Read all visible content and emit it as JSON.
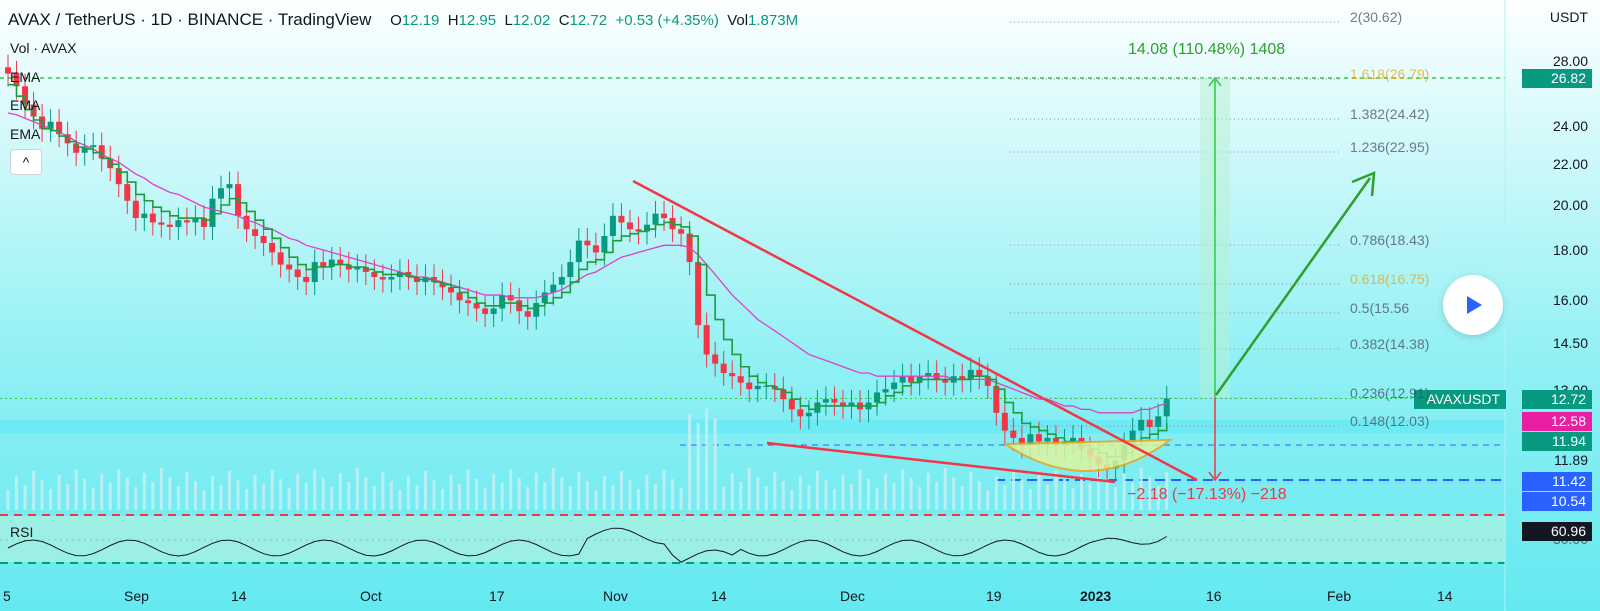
{
  "header": {
    "symbol": "AVAX / TetherUS · 1D · BINANCE · TradingView",
    "o_label": "O",
    "o_value": "12.19",
    "h_label": "H",
    "h_value": "12.95",
    "l_label": "L",
    "l_value": "12.02",
    "c_label": "C",
    "c_value": "12.72",
    "change": "+0.53 (+4.35%)",
    "vol_label": "Vol",
    "vol_value": "1.873M"
  },
  "legend": {
    "volume": "Vol · AVAX",
    "ema1": "EMA",
    "ema2": "EMA",
    "ema3": "EMA",
    "collapse": "^"
  },
  "rsi_label": "RSI",
  "currency": "USDT",
  "price_axis": [
    "28.00",
    "24.00",
    "22.00",
    "20.00",
    "18.00",
    "16.00",
    "14.50",
    "13.00",
    "11.89"
  ],
  "price_tags": [
    {
      "text": "26.82",
      "color": "#089981"
    },
    {
      "text": "12.72",
      "color": "#089981"
    },
    {
      "text": "12.58",
      "color": "#e91ea3"
    },
    {
      "text": "11.94",
      "color": "#089981"
    },
    {
      "text": "11.42",
      "color": "#2962ff"
    },
    {
      "text": "10.54",
      "color": "#2962ff"
    },
    {
      "text": "60.96",
      "color": "#131722"
    }
  ],
  "symbol_tag": "AVAXUSDT",
  "rsi_axis": "50.00",
  "fib_labels": [
    "2(30.62)",
    "1.618(26.79)",
    "1.382(24.42)",
    "1.236(22.95)",
    "0.786(18.43)",
    "0.618(16.75)",
    "0.5(15.56",
    "0.382(14.38)",
    "0.236(12.91)",
    "0.148(12.03)"
  ],
  "measure_up": "14.08 (110.48%) 1408",
  "measure_down": "−2.18 (−17.13%) −218",
  "time_axis": [
    "5",
    "Sep",
    "14",
    "Oct",
    "17",
    "Nov",
    "14",
    "Dec",
    "19",
    "2023",
    "16",
    "Feb",
    "14"
  ],
  "colors": {
    "up": "#089981",
    "down": "#f23645",
    "ema_fast": "#1e9c3a",
    "ema_slow": "#e040c8",
    "trend": "#f23645",
    "target": "#2e9e2e"
  },
  "chart_data": {
    "type": "candlestick",
    "title": "AVAX / TetherUS · 1D · BINANCE",
    "ylabel": "USDT",
    "ylim": [
      10.2,
      32
    ],
    "scale": "log",
    "x_ticks": [
      "5",
      "Sep",
      "14",
      "Oct",
      "17",
      "Nov",
      "14",
      "Dec",
      "19",
      "2023",
      "16",
      "Feb",
      "14"
    ],
    "close": [
      27.2,
      26.4,
      25.3,
      24.6,
      23.9,
      24.3,
      23.6,
      23.1,
      22.6,
      22.9,
      23.0,
      22.3,
      21.8,
      21.0,
      20.2,
      19.4,
      19.6,
      19.2,
      19.1,
      19.0,
      19.3,
      19.2,
      19.4,
      19.0,
      20.3,
      20.8,
      21.0,
      19.5,
      18.9,
      18.6,
      18.3,
      17.9,
      17.4,
      17.2,
      16.9,
      16.7,
      17.5,
      17.3,
      17.6,
      17.4,
      17.2,
      17.3,
      17.1,
      16.9,
      16.8,
      16.9,
      17.1,
      16.9,
      16.7,
      16.9,
      16.7,
      16.5,
      16.3,
      16.0,
      15.9,
      15.7,
      15.5,
      15.7,
      16.2,
      16.0,
      15.6,
      15.4,
      15.9,
      16.3,
      16.6,
      16.9,
      17.5,
      18.4,
      18.2,
      17.9,
      18.6,
      19.5,
      19.2,
      18.9,
      18.8,
      19.1,
      19.6,
      19.4,
      18.9,
      18.7,
      17.5,
      15.1,
      14.1,
      13.8,
      13.5,
      13.4,
      13.2,
      13.0,
      13.1,
      13.1,
      13.0,
      12.7,
      12.4,
      12.2,
      12.3,
      12.6,
      12.7,
      12.6,
      12.5,
      12.6,
      12.4,
      12.6,
      12.9,
      13.0,
      13.2,
      13.4,
      13.2,
      13.4,
      13.5,
      13.3,
      13.2,
      13.4,
      13.3,
      13.6,
      13.4,
      13.1,
      12.3,
      11.8,
      11.6,
      11.4,
      11.7,
      11.5,
      11.6,
      11.4,
      11.5,
      11.6,
      11.3,
      11.1,
      10.9,
      10.8,
      11.0,
      11.4,
      11.8,
      12.1,
      11.9,
      12.2,
      12.72
    ],
    "series": [
      {
        "name": "EMA fast",
        "values": [
          26.5,
          25.8,
          25.0,
          24.4,
          23.9,
          23.8,
          23.5,
          23.2,
          22.9,
          22.8,
          22.6,
          22.3,
          22.0,
          21.6,
          21.1,
          20.5,
          20.2,
          19.9,
          19.7,
          19.5,
          19.4,
          19.4,
          19.4,
          19.3,
          19.6,
          20.0,
          20.3,
          20.1,
          19.7,
          19.3,
          18.9,
          18.5,
          18.1,
          17.7,
          17.4,
          17.2,
          17.3,
          17.3,
          17.4,
          17.4,
          17.3,
          17.3,
          17.2,
          17.1,
          17.0,
          17.0,
          17.0,
          16.9,
          16.8,
          16.8,
          16.7,
          16.6,
          16.5,
          16.3,
          16.1,
          15.9,
          15.8,
          15.8,
          15.9,
          15.9,
          15.8,
          15.7,
          15.8,
          15.9,
          16.1,
          16.3,
          16.7,
          17.2,
          17.5,
          17.6,
          17.9,
          18.4,
          18.6,
          18.7,
          18.8,
          18.9,
          19.1,
          19.2,
          19.1,
          19.0,
          18.6,
          17.4,
          16.2,
          15.3,
          14.6,
          14.1,
          13.7,
          13.4,
          13.2,
          13.1,
          13.0,
          12.9,
          12.7,
          12.5,
          12.4,
          12.5,
          12.5,
          12.5,
          12.5,
          12.5,
          12.5,
          12.5,
          12.6,
          12.8,
          12.9,
          13.1,
          13.2,
          13.3,
          13.3,
          13.3,
          13.3,
          13.3,
          13.3,
          13.4,
          13.4,
          13.3,
          13.0,
          12.6,
          12.3,
          12.0,
          11.9,
          11.8,
          11.7,
          11.6,
          11.5,
          11.5,
          11.4,
          11.3,
          11.2,
          11.1,
          11.1,
          11.2,
          11.4,
          11.6,
          11.7,
          11.8,
          12.0
        ]
      },
      {
        "name": "EMA slow",
        "values": [
          24.8,
          24.7,
          24.5,
          24.3,
          24.1,
          23.9,
          23.7,
          23.5,
          23.2,
          23.0,
          22.8,
          22.5,
          22.3,
          22.1,
          21.8,
          21.5,
          21.3,
          21.0,
          20.8,
          20.6,
          20.5,
          20.3,
          20.1,
          19.9,
          19.8,
          19.7,
          19.6,
          19.5,
          19.3,
          19.2,
          19.0,
          18.9,
          18.7,
          18.5,
          18.4,
          18.2,
          18.1,
          18.0,
          17.9,
          17.8,
          17.7,
          17.6,
          17.5,
          17.4,
          17.3,
          17.2,
          17.1,
          17.0,
          16.9,
          16.9,
          16.8,
          16.7,
          16.6,
          16.5,
          16.4,
          16.3,
          16.2,
          16.2,
          16.2,
          16.1,
          16.1,
          16.1,
          16.1,
          16.2,
          16.3,
          16.4,
          16.6,
          16.8,
          17.0,
          17.1,
          17.3,
          17.5,
          17.7,
          17.8,
          17.9,
          18.0,
          18.1,
          18.2,
          18.2,
          18.2,
          18.1,
          17.8,
          17.4,
          17.0,
          16.6,
          16.2,
          15.9,
          15.6,
          15.3,
          15.1,
          14.9,
          14.7,
          14.5,
          14.3,
          14.1,
          14.0,
          13.9,
          13.8,
          13.7,
          13.6,
          13.5,
          13.5,
          13.4,
          13.4,
          13.4,
          13.4,
          13.4,
          13.4,
          13.4,
          13.4,
          13.4,
          13.3,
          13.3,
          13.3,
          13.3,
          13.3,
          13.2,
          13.1,
          13.0,
          12.9,
          12.8,
          12.7,
          12.7,
          12.6,
          12.5,
          12.5,
          12.4,
          12.4,
          12.3,
          12.3,
          12.3,
          12.3,
          12.3,
          12.4,
          12.4,
          12.5,
          12.58
        ]
      }
    ],
    "fibonacci": [
      {
        "level": 2,
        "price": 30.62
      },
      {
        "level": 1.618,
        "price": 26.79
      },
      {
        "level": 1.382,
        "price": 24.42
      },
      {
        "level": 1.236,
        "price": 22.95
      },
      {
        "level": 0.786,
        "price": 18.43
      },
      {
        "level": 0.618,
        "price": 16.75
      },
      {
        "level": 0.5,
        "price": 15.56
      },
      {
        "level": 0.382,
        "price": 14.38
      },
      {
        "level": 0.236,
        "price": 12.91
      },
      {
        "level": 0.148,
        "price": 12.03
      }
    ],
    "last_price": 12.72,
    "rsi_last": 60.96
  }
}
